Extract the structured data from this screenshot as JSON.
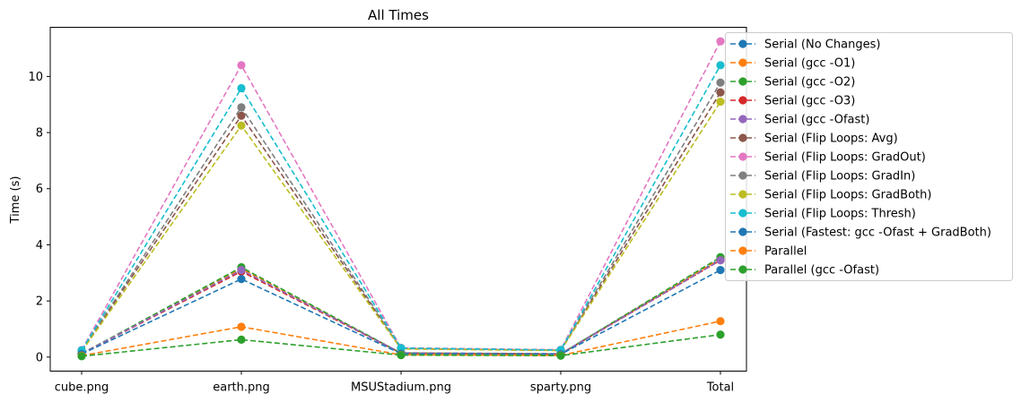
{
  "chart_data": {
    "type": "line",
    "title": "All Times",
    "xlabel": "",
    "ylabel": "Time (s)",
    "categories": [
      "cube.png",
      "earth.png",
      "MSUStadium.png",
      "sparty.png",
      "Total"
    ],
    "ylim": [
      -0.5,
      11.75
    ],
    "yticks": [
      0,
      2,
      4,
      6,
      8,
      10
    ],
    "grid": false,
    "legend_position": "right-outside",
    "series": [
      {
        "name": "Serial (No Changes)",
        "color": "#1f77b4",
        "values": [
          0.13,
          3.1,
          0.15,
          0.12,
          3.5
        ]
      },
      {
        "name": "Serial (gcc -O1)",
        "color": "#ff7f0e",
        "values": [
          0.12,
          3.15,
          0.14,
          0.11,
          3.5
        ]
      },
      {
        "name": "Serial (gcc -O2)",
        "color": "#2ca02c",
        "values": [
          0.12,
          3.2,
          0.14,
          0.11,
          3.56
        ]
      },
      {
        "name": "Serial (gcc -O3)",
        "color": "#d62728",
        "values": [
          0.12,
          3.05,
          0.14,
          0.11,
          3.45
        ]
      },
      {
        "name": "Serial (gcc -Ofast)",
        "color": "#9467bd",
        "values": [
          0.12,
          3.1,
          0.14,
          0.11,
          3.45
        ]
      },
      {
        "name": "Serial (Flip Loops: Avg)",
        "color": "#8c564b",
        "values": [
          0.22,
          8.6,
          0.3,
          0.24,
          9.43
        ]
      },
      {
        "name": "Serial (Flip Loops: GradOut)",
        "color": "#e377c2",
        "values": [
          0.25,
          10.4,
          0.33,
          0.26,
          11.25
        ]
      },
      {
        "name": "Serial (Flip Loops: GradIn)",
        "color": "#7f7f7f",
        "values": [
          0.23,
          8.9,
          0.31,
          0.25,
          9.78
        ]
      },
      {
        "name": "Serial (Flip Loops: GradBoth)",
        "color": "#bcbd22",
        "values": [
          0.2,
          8.25,
          0.29,
          0.23,
          9.1
        ]
      },
      {
        "name": "Serial (Flip Loops: Thresh)",
        "color": "#17becf",
        "values": [
          0.24,
          9.58,
          0.32,
          0.25,
          10.4
        ]
      },
      {
        "name": "Serial (Fastest: gcc -Ofast + GradBoth)",
        "color": "#1f77b4",
        "values": [
          0.11,
          2.78,
          0.12,
          0.1,
          3.1
        ]
      },
      {
        "name": "Parallel",
        "color": "#ff7f0e",
        "values": [
          0.05,
          1.08,
          0.08,
          0.06,
          1.28
        ]
      },
      {
        "name": "Parallel (gcc -Ofast)",
        "color": "#2ca02c",
        "values": [
          0.03,
          0.62,
          0.07,
          0.05,
          0.8
        ]
      }
    ]
  }
}
